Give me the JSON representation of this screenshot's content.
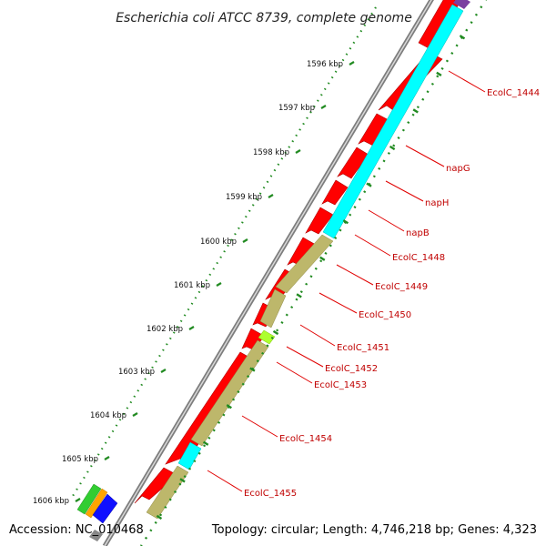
{
  "title": "Escherichia coli ATCC 8739, complete genome",
  "footer": {
    "accession": "Accession: NC_010468",
    "summary": "Topology: circular; Length: 4,746,218 bp; Genes: 4,323"
  },
  "colors": {
    "backbone": "#8a8a8a",
    "cds": "#ff0000",
    "cog_cyan": "#00ffff",
    "cog_khaki": "#bdb76b",
    "cog_lime": "#adff2f",
    "tick_dot": "#228b22",
    "label": "#c00000"
  },
  "scale_ticks": [
    {
      "label": "1596 kbp"
    },
    {
      "label": "1597 kbp"
    },
    {
      "label": "1598 kbp"
    },
    {
      "label": "1599 kbp"
    },
    {
      "label": "1600 kbp"
    },
    {
      "label": "1601 kbp"
    },
    {
      "label": "1602 kbp"
    },
    {
      "label": "1603 kbp"
    },
    {
      "label": "1604 kbp"
    },
    {
      "label": "1605 kbp"
    },
    {
      "label": "1606 kbp"
    }
  ],
  "gene_labels": [
    {
      "name": "EcolC_1444"
    },
    {
      "name": "napG"
    },
    {
      "name": "napH"
    },
    {
      "name": "napB"
    },
    {
      "name": "EcolC_1448"
    },
    {
      "name": "EcolC_1449"
    },
    {
      "name": "EcolC_1450"
    },
    {
      "name": "EcolC_1451"
    },
    {
      "name": "EcolC_1452"
    },
    {
      "name": "EcolC_1453"
    },
    {
      "name": "EcolC_1454"
    },
    {
      "name": "EcolC_1455"
    }
  ]
}
